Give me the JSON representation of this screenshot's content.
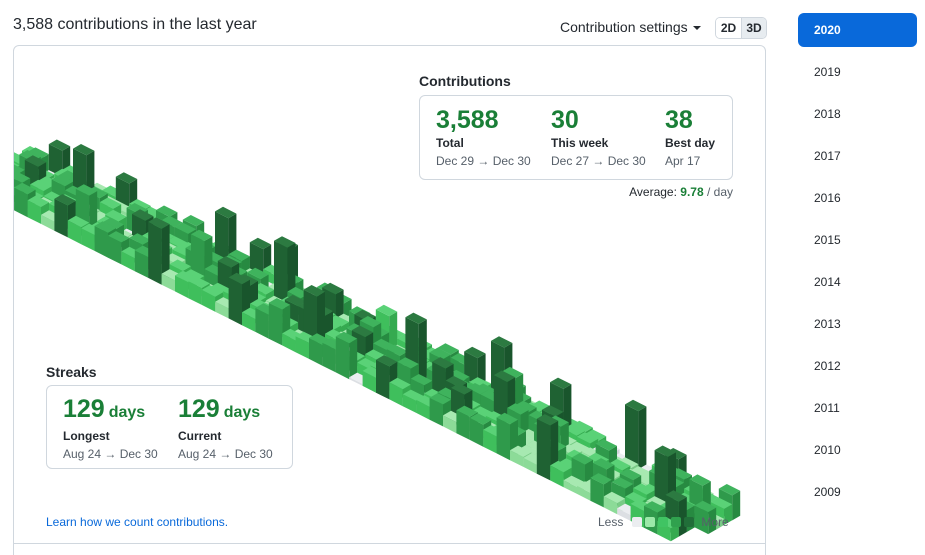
{
  "header": {
    "title": "3,588 contributions in the last year"
  },
  "settings": {
    "label": "Contribution settings"
  },
  "view_toggle": {
    "options": [
      "2D",
      "3D"
    ],
    "active": "3D"
  },
  "contributions": {
    "heading": "Contributions",
    "total": {
      "value": "3,588",
      "label": "Total",
      "range": "Dec 29 → Dec 30"
    },
    "week": {
      "value": "30",
      "label": "This week",
      "range": "Dec 27 → Dec 30"
    },
    "best": {
      "value": "38",
      "label": "Best day",
      "range": "Apr 17"
    },
    "average": {
      "label": "Average:",
      "value": "9.78",
      "unit": "/ day"
    }
  },
  "streaks": {
    "heading": "Streaks",
    "longest": {
      "value": "129",
      "unit": "days",
      "label": "Longest",
      "range": "Aug 24 → Dec 30"
    },
    "current": {
      "value": "129",
      "unit": "days",
      "label": "Current",
      "range": "Aug 24 → Dec 30"
    }
  },
  "learn_link": "Learn how we count contributions.",
  "legend": {
    "less": "Less",
    "more": "More",
    "colors": [
      "#ebedf0",
      "#9be9a8",
      "#40c463",
      "#30a14e",
      "#216e39"
    ]
  },
  "years": [
    "2020",
    "2019",
    "2018",
    "2017",
    "2016",
    "2015",
    "2014",
    "2013",
    "2012",
    "2011",
    "2010",
    "2009"
  ],
  "selected_year": "2020",
  "colors": {
    "accent": "#0969da",
    "green_text": "#1a7f37",
    "level_faces": [
      [
        "#ebedf0",
        "#dcdfe3",
        "#cfd3d8"
      ],
      [
        "#a7e9b1",
        "#8cdb98",
        "#79cb86"
      ],
      [
        "#5ad277",
        "#3fbf5c",
        "#35aa50"
      ],
      [
        "#3fb35d",
        "#2f9a4b",
        "#278a41"
      ],
      [
        "#2c7a41",
        "#1f6233",
        "#19552c"
      ]
    ]
  }
}
